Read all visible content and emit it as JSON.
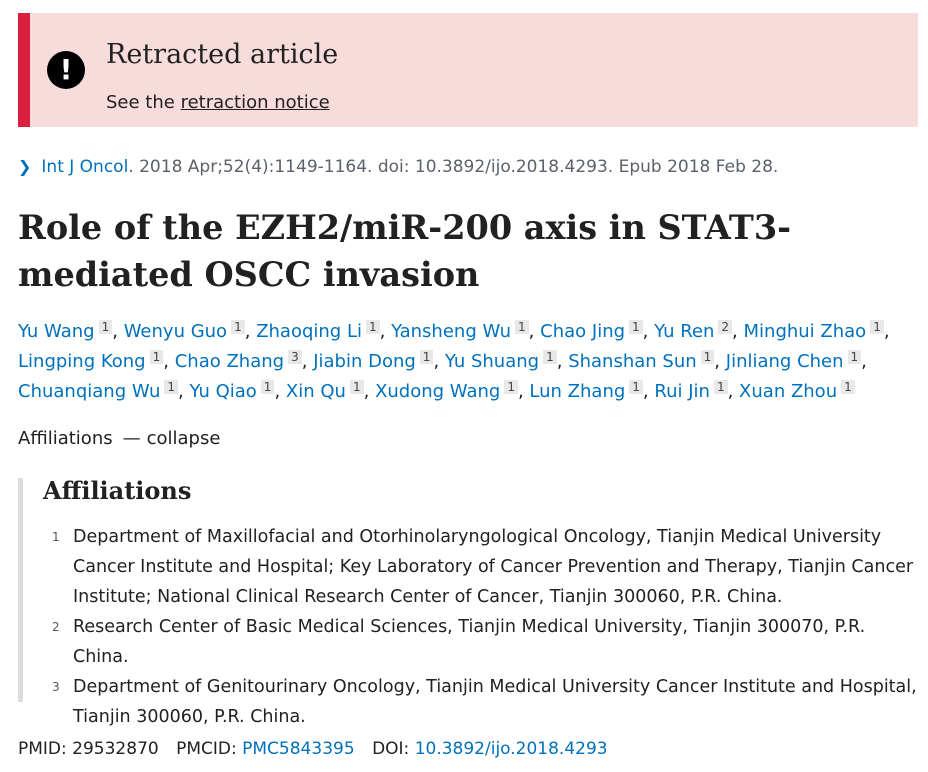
{
  "banner": {
    "title": "Retracted article",
    "sub_prefix": "See the ",
    "sub_link": "retraction notice",
    "icon": "exclamation-icon",
    "accent_color": "#d9203f",
    "background_color": "#f8dcdb"
  },
  "citation": {
    "journal": "Int J Oncol",
    "rest": ". 2018 Apr;52(4):1149-1164. doi: 10.3892/ijo.2018.4293. Epub 2018 Feb 28."
  },
  "title": "Role of the EZH2/miR-200 axis in STAT3-mediated OSCC invasion",
  "authors": [
    {
      "name": "Yu Wang",
      "aff": "1"
    },
    {
      "name": "Wenyu Guo",
      "aff": "1"
    },
    {
      "name": "Zhaoqing Li",
      "aff": "1"
    },
    {
      "name": "Yansheng Wu",
      "aff": "1"
    },
    {
      "name": "Chao Jing",
      "aff": "1"
    },
    {
      "name": "Yu Ren",
      "aff": "2"
    },
    {
      "name": "Minghui Zhao",
      "aff": "1"
    },
    {
      "name": "Lingping Kong",
      "aff": "1"
    },
    {
      "name": "Chao Zhang",
      "aff": "3"
    },
    {
      "name": "Jiabin Dong",
      "aff": "1"
    },
    {
      "name": "Yu Shuang",
      "aff": "1"
    },
    {
      "name": "Shanshan Sun",
      "aff": "1"
    },
    {
      "name": "Jinliang Chen",
      "aff": "1"
    },
    {
      "name": "Chuanqiang Wu",
      "aff": "1"
    },
    {
      "name": "Yu Qiao",
      "aff": "1"
    },
    {
      "name": "Xin Qu",
      "aff": "1"
    },
    {
      "name": "Xudong Wang",
      "aff": "1"
    },
    {
      "name": "Lun Zhang",
      "aff": "1"
    },
    {
      "name": "Rui Jin",
      "aff": "1"
    },
    {
      "name": "Xuan Zhou",
      "aff": "1"
    }
  ],
  "affiliations_toggle": {
    "label": "Affiliations",
    "dash": "—",
    "action": "collapse"
  },
  "affiliations": {
    "heading": "Affiliations",
    "items": [
      {
        "num": "1",
        "text": "Department of Maxillofacial and Otorhinolaryngological Oncology, Tianjin Medical University Cancer Institute and Hospital; Key Laboratory of Cancer Prevention and Therapy, Tianjin Cancer Institute; National Clinical Research Center of Cancer, Tianjin 300060, P.R. China."
      },
      {
        "num": "2",
        "text": "Research Center of Basic Medical Sciences, Tianjin Medical University, Tianjin 300070, P.R. China."
      },
      {
        "num": "3",
        "text": "Department of Genitourinary Oncology, Tianjin Medical University Cancer Institute and Hospital, Tianjin 300060, P.R. China."
      }
    ]
  },
  "identifiers": {
    "pmid_label": "PMID:",
    "pmid": "29532870",
    "pmcid_label": "PMCID:",
    "pmcid": "PMC5843395",
    "doi_label": "DOI:",
    "doi": "10.3892/ijo.2018.4293"
  }
}
